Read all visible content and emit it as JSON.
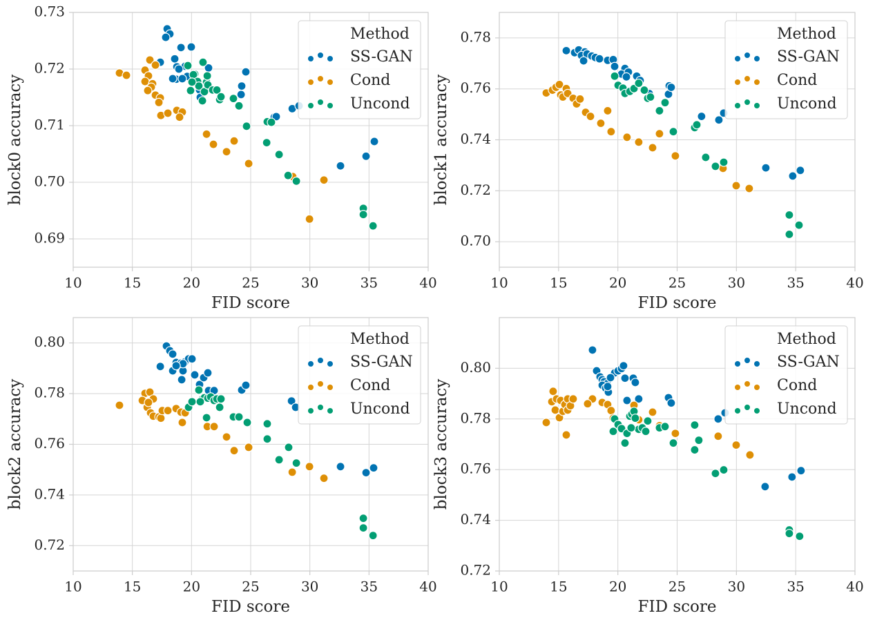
{
  "chart_data": [
    {
      "type": "scatter",
      "xlabel": "FID score",
      "ylabel": "block0 accuracy",
      "xlim": [
        10,
        40
      ],
      "ylim": [
        0.685,
        0.73
      ],
      "xticks": [
        10,
        15,
        20,
        25,
        30,
        35,
        40
      ],
      "yticks": [
        0.69,
        {
          "value": 0.7,
          "label": "0.70"
        },
        0.71,
        0.72,
        0.73
      ],
      "grid": true,
      "legend_title": "Method",
      "legend_loc": "upper right",
      "series": [
        {
          "name": "SS-GAN",
          "color": "#0173b2",
          "x": [
            17.94,
            18.17,
            17.82,
            17.36,
            19.11,
            19.98,
            18.58,
            18.76,
            19.46,
            18.93,
            19.63,
            21.44,
            18.7,
            19.22,
            18.41,
            20.68,
            20.74,
            24.24,
            24.19,
            24.59,
            26.99,
            28.51,
            29.09,
            27.16,
            32.59,
            34.75,
            35.45
          ],
          "values": [
            0.7271,
            0.7262,
            0.7256,
            0.7212,
            0.7238,
            0.7239,
            0.7218,
            0.7204,
            0.7205,
            0.72,
            0.7187,
            0.7202,
            0.7182,
            0.7183,
            0.7183,
            0.7163,
            0.715,
            0.717,
            0.7155,
            0.7195,
            0.7115,
            0.713,
            0.7135,
            0.7116,
            0.7029,
            0.7046,
            0.7072
          ]
        },
        {
          "name": "Cond",
          "color": "#de8f05",
          "x": [
            13.91,
            14.5,
            16.48,
            16.95,
            16.07,
            16.36,
            16.07,
            16.71,
            16.6,
            16.3,
            16.95,
            17.36,
            17.24,
            17.41,
            18.0,
            18.76,
            19.22,
            18.99,
            21.27,
            21.85,
            22.96,
            23.6,
            24.83,
            28.56,
            31.19,
            29.97
          ],
          "values": [
            0.7193,
            0.7189,
            0.7216,
            0.7207,
            0.7198,
            0.7188,
            0.7178,
            0.7174,
            0.7168,
            0.7162,
            0.7154,
            0.7149,
            0.7141,
            0.7118,
            0.7122,
            0.7127,
            0.7124,
            0.7115,
            0.7085,
            0.7067,
            0.7054,
            0.7073,
            0.7033,
            0.701,
            0.7004,
            0.6935
          ]
        },
        {
          "name": "Uncond",
          "color": "#029e73",
          "x": [
            19.69,
            20.27,
            20.97,
            19.92,
            20.16,
            20.51,
            20.62,
            20.92,
            21.09,
            21.27,
            21.38,
            21.79,
            22.14,
            22.38,
            22.49,
            23.54,
            24.01,
            24.65,
            26.4,
            26.75,
            26.35,
            27.4,
            28.16,
            28.86,
            34.52,
            34.52,
            35.34,
            21.33,
            20.04
          ],
          "values": [
            0.7206,
            0.7191,
            0.7212,
            0.7162,
            0.719,
            0.7178,
            0.717,
            0.7144,
            0.716,
            0.7177,
            0.7172,
            0.7163,
            0.7163,
            0.7146,
            0.7151,
            0.7148,
            0.7135,
            0.7099,
            0.7107,
            0.7106,
            0.707,
            0.7049,
            0.7012,
            0.7002,
            0.6954,
            0.6943,
            0.6923,
            0.7188,
            0.7177
          ]
        }
      ]
    },
    {
      "type": "scatter",
      "xlabel": "FID score",
      "ylabel": "block1 accuracy",
      "xlim": [
        10,
        40
      ],
      "ylim": [
        0.69,
        0.79
      ],
      "xticks": [
        10,
        15,
        20,
        25,
        30,
        35,
        40
      ],
      "yticks": [
        {
          "value": 0.7,
          "label": "0.70"
        },
        0.72,
        0.74,
        0.76,
        0.78
      ],
      "grid": true,
      "legend_title": "Method",
      "legend_loc": "upper right",
      "series": [
        {
          "name": "SS-GAN",
          "color": "#0173b2",
          "x": [
            15.65,
            16.35,
            16.7,
            17.22,
            16.93,
            17.4,
            17.8,
            17.11,
            18.1,
            18.45,
            19.14,
            19.61,
            20.6,
            19.73,
            20.31,
            20.89,
            21.59,
            21.88,
            20.72,
            22.64,
            24.27,
            24.33,
            24.5,
            27.06,
            28.52,
            28.93,
            32.48,
            34.75,
            35.39
          ],
          "values": [
            0.775,
            0.7742,
            0.7753,
            0.7745,
            0.7731,
            0.7737,
            0.7729,
            0.771,
            0.7723,
            0.7718,
            0.7712,
            0.7715,
            0.768,
            0.7688,
            0.7658,
            0.7666,
            0.765,
            0.7633,
            0.7647,
            0.7582,
            0.7579,
            0.7612,
            0.7606,
            0.7492,
            0.7478,
            0.7505,
            0.729,
            0.7258,
            0.728
          ]
        },
        {
          "name": "Cond",
          "color": "#de8f05",
          "x": [
            13.96,
            14.48,
            14.78,
            15.07,
            15.18,
            15.36,
            15.65,
            15.77,
            16.23,
            16.52,
            16.81,
            17.28,
            17.69,
            18.56,
            19.14,
            19.43,
            20.77,
            21.76,
            22.93,
            23.51,
            24.85,
            28.87,
            29.98,
            31.08
          ],
          "values": [
            0.7584,
            0.7595,
            0.7606,
            0.7617,
            0.7576,
            0.7568,
            0.7601,
            0.7582,
            0.7563,
            0.7541,
            0.756,
            0.7508,
            0.7492,
            0.7465,
            0.7514,
            0.7432,
            0.741,
            0.7391,
            0.7369,
            0.7424,
            0.7337,
            0.7288,
            0.722,
            0.7209
          ]
        },
        {
          "name": "Uncond",
          "color": "#029e73",
          "x": [
            19.73,
            20.02,
            20.43,
            20.6,
            21.01,
            21.36,
            21.76,
            22.23,
            22.52,
            22.75,
            23.51,
            23.98,
            24.68,
            26.48,
            26.66,
            27.41,
            28.23,
            28.93,
            34.46,
            34.46,
            35.28
          ],
          "values": [
            0.765,
            0.7614,
            0.7603,
            0.7582,
            0.759,
            0.7601,
            0.7622,
            0.7595,
            0.7563,
            0.7568,
            0.7514,
            0.7546,
            0.7432,
            0.7448,
            0.7459,
            0.7331,
            0.7296,
            0.7312,
            0.7105,
            0.7029,
            0.7065
          ]
        }
      ]
    },
    {
      "type": "scatter",
      "xlabel": "FID score",
      "ylabel": "block2 accuracy",
      "xlim": [
        10,
        40
      ],
      "ylim": [
        0.71,
        0.81
      ],
      "xticks": [
        10,
        15,
        20,
        25,
        30,
        35,
        40
      ],
      "yticks": [
        0.72,
        0.74,
        0.76,
        0.78,
        {
          "value": 0.8,
          "label": "0.80"
        }
      ],
      "grid": true,
      "legend_title": "Method",
      "legend_loc": "upper right",
      "series": [
        {
          "name": "SS-GAN",
          "color": "#0173b2",
          "x": [
            17.88,
            18.17,
            18.41,
            17.36,
            18.7,
            19.11,
            19.46,
            18.41,
            19.28,
            19.17,
            19.75,
            20.04,
            20.27,
            20.68,
            21.03,
            21.38,
            21.44,
            21.91,
            24.24,
            24.59,
            28.45,
            28.8,
            32.59,
            34.75,
            35.39,
            19.28,
            18.7
          ],
          "values": [
            0.7988,
            0.7969,
            0.7956,
            0.7907,
            0.7923,
            0.792,
            0.7926,
            0.789,
            0.789,
            0.7855,
            0.7937,
            0.7937,
            0.7874,
            0.7836,
            0.7863,
            0.7882,
            0.7812,
            0.7812,
            0.7814,
            0.7833,
            0.7771,
            0.7746,
            0.7512,
            0.7488,
            0.7507,
            0.7918,
            0.791
          ]
        },
        {
          "name": "Cond",
          "color": "#de8f05",
          "x": [
            13.91,
            16.07,
            16.48,
            16.77,
            16.13,
            16.25,
            16.54,
            16.77,
            17.24,
            17.41,
            17.53,
            18.0,
            18.7,
            19.11,
            19.22,
            19.46,
            21.33,
            21.91,
            22.96,
            23.6,
            24.83,
            28.51,
            29.97,
            31.19,
            15.84,
            16.36
          ],
          "values": [
            0.7754,
            0.7801,
            0.7806,
            0.7779,
            0.7765,
            0.7746,
            0.7724,
            0.7711,
            0.7708,
            0.7703,
            0.7733,
            0.7733,
            0.7741,
            0.7727,
            0.7686,
            0.7724,
            0.767,
            0.767,
            0.7629,
            0.7575,
            0.7588,
            0.749,
            0.7512,
            0.7466,
            0.7773,
            0.7765
          ]
        },
        {
          "name": "Uncond",
          "color": "#029e73",
          "x": [
            19.75,
            20.04,
            20.62,
            20.92,
            21.09,
            21.27,
            21.38,
            21.62,
            21.91,
            22.14,
            22.38,
            22.49,
            23.54,
            24.01,
            24.71,
            26.4,
            26.4,
            27.4,
            28.21,
            28.86,
            34.52,
            34.52,
            35.34,
            20.74
          ],
          "values": [
            0.7746,
            0.7768,
            0.7814,
            0.7779,
            0.7784,
            0.7705,
            0.7782,
            0.7787,
            0.7773,
            0.7779,
            0.7746,
            0.7779,
            0.7708,
            0.7708,
            0.7686,
            0.7681,
            0.7621,
            0.7539,
            0.7588,
            0.7526,
            0.7308,
            0.727,
            0.724,
            0.7768
          ]
        }
      ]
    },
    {
      "type": "scatter",
      "xlabel": "FID score",
      "ylabel": "block3 accuracy",
      "xlim": [
        10,
        40
      ],
      "ylim": [
        0.72,
        0.82
      ],
      "xticks": [
        10,
        15,
        20,
        25,
        30,
        35,
        40
      ],
      "yticks": [
        0.72,
        0.74,
        0.76,
        0.78,
        {
          "value": 0.8,
          "label": "0.80"
        }
      ],
      "grid": true,
      "legend_title": "Method",
      "legend_loc": "upper right",
      "series": [
        {
          "name": "SS-GAN",
          "color": "#0173b2",
          "x": [
            17.86,
            18.21,
            18.5,
            18.68,
            18.85,
            19.09,
            18.68,
            18.97,
            19.2,
            19.73,
            20.02,
            20.31,
            20.48,
            19.14,
            20.77,
            21.3,
            21.47,
            21.76,
            20.6,
            19.38,
            24.27,
            24.5,
            28.46,
            29.04,
            32.42,
            34.69,
            35.45
          ],
          "values": [
            0.8072,
            0.799,
            0.7966,
            0.7955,
            0.7947,
            0.7939,
            0.7933,
            0.7922,
            0.7906,
            0.7982,
            0.799,
            0.7999,
            0.801,
            0.7928,
            0.7873,
            0.7961,
            0.7944,
            0.7879,
            0.7961,
            0.7963,
            0.7884,
            0.7863,
            0.78,
            0.7824,
            0.7533,
            0.7571,
            0.7596
          ]
        },
        {
          "name": "Cond",
          "color": "#de8f05",
          "x": [
            13.96,
            14.43,
            14.54,
            14.83,
            14.72,
            15.18,
            15.07,
            15.36,
            15.53,
            15.77,
            15.77,
            16.0,
            16.23,
            15.65,
            17.86,
            18.68,
            19.14,
            19.43,
            19.61,
            21.36,
            21.76,
            22.93,
            23.51,
            24.85,
            28.46,
            29.98,
            31.14,
            17.45
          ],
          "values": [
            0.7786,
            0.7868,
            0.7909,
            0.7879,
            0.7835,
            0.7873,
            0.7805,
            0.783,
            0.7857,
            0.7879,
            0.7835,
            0.7852,
            0.7879,
            0.7737,
            0.7879,
            0.7865,
            0.7857,
            0.7833,
            0.7803,
            0.7854,
            0.7797,
            0.7827,
            0.7773,
            0.7743,
            0.7732,
            0.7697,
            0.7658,
            0.786
          ]
        },
        {
          "name": "Uncond",
          "color": "#029e73",
          "x": [
            19.73,
            20.02,
            20.31,
            20.6,
            20.77,
            21.01,
            21.18,
            21.36,
            21.47,
            21.76,
            22.06,
            22.35,
            22.52,
            23.51,
            23.98,
            24.68,
            26.48,
            26.48,
            26.83,
            28.23,
            28.93,
            34.46,
            34.46,
            35.33,
            21.12,
            19.61
          ],
          "values": [
            0.78,
            0.7778,
            0.7762,
            0.7705,
            0.7743,
            0.7811,
            0.7819,
            0.783,
            0.7803,
            0.7759,
            0.7765,
            0.7751,
            0.7792,
            0.7765,
            0.777,
            0.7705,
            0.7776,
            0.7678,
            0.7716,
            0.7585,
            0.7599,
            0.7362,
            0.7348,
            0.7337,
            0.7765,
            0.7751
          ]
        }
      ]
    }
  ]
}
